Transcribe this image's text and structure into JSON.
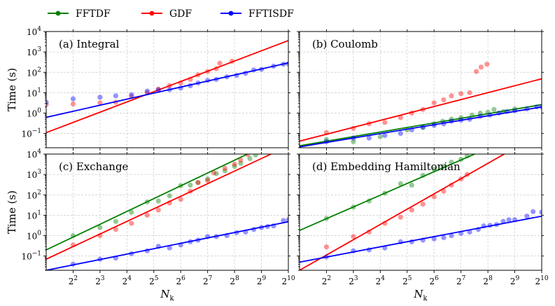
{
  "chart_data": {
    "type": "scatter",
    "xlabel": "N",
    "xlabel_sub": "k",
    "ylabel": "Time (s)",
    "x_scale": "log2",
    "y_scale": "log10",
    "xlim": [
      2,
      1024
    ],
    "ylim": [
      0.02,
      10000
    ],
    "x_ticks": [
      {
        "value": 4,
        "base": "2",
        "exp": "2"
      },
      {
        "value": 8,
        "base": "2",
        "exp": "3"
      },
      {
        "value": 16,
        "base": "2",
        "exp": "4"
      },
      {
        "value": 32,
        "base": "2",
        "exp": "5"
      },
      {
        "value": 64,
        "base": "2",
        "exp": "6"
      },
      {
        "value": 128,
        "base": "2",
        "exp": "7"
      },
      {
        "value": 256,
        "base": "2",
        "exp": "8"
      },
      {
        "value": 512,
        "base": "2",
        "exp": "9"
      },
      {
        "value": 1024,
        "base": "2",
        "exp": "10"
      }
    ],
    "y_ticks": [
      {
        "value": 0.1,
        "base": "10",
        "exp": "−1"
      },
      {
        "value": 1,
        "base": "10",
        "exp": "0"
      },
      {
        "value": 10,
        "base": "10",
        "exp": "1"
      },
      {
        "value": 100,
        "base": "10",
        "exp": "2"
      },
      {
        "value": 1000,
        "base": "10",
        "exp": "3"
      },
      {
        "value": 10000,
        "base": "10",
        "exp": "4"
      }
    ],
    "legend": [
      {
        "name": "FFTDF",
        "color": "#008000"
      },
      {
        "name": "GDF",
        "color": "#ff0000"
      },
      {
        "name": "FFTISDF",
        "color": "#0000ff"
      }
    ],
    "panels": [
      {
        "title": "(a) Integral",
        "series": [
          {
            "name": "GDF",
            "color": "#ff0000",
            "points": [
              [
                2,
                2.6
              ],
              [
                4,
                2.8
              ],
              [
                8,
                3.2
              ],
              [
                12,
                3.4
              ],
              [
                18,
                6.5
              ],
              [
                27,
                10
              ],
              [
                36,
                15
              ],
              [
                48,
                22
              ],
              [
                64,
                30
              ],
              [
                82,
                45
              ],
              [
                100,
                75
              ],
              [
                128,
                110
              ],
              [
                160,
                150
              ],
              [
                175,
                280
              ],
              [
                240,
                350
              ]
            ],
            "fit": [
              [
                2,
                0.11
              ],
              [
                1024,
                3600
              ]
            ]
          },
          {
            "name": "FFTISDF",
            "color": "#0000ff",
            "points": [
              [
                2,
                3.4
              ],
              [
                4,
                5
              ],
              [
                8,
                6
              ],
              [
                12,
                7
              ],
              [
                18,
                8
              ],
              [
                27,
                12
              ],
              [
                36,
                14
              ],
              [
                48,
                14
              ],
              [
                64,
                17
              ],
              [
                82,
                22
              ],
              [
                100,
                30
              ],
              [
                128,
                40
              ],
              [
                160,
                45
              ],
              [
                210,
                60
              ],
              [
                270,
                70
              ],
              [
                340,
                90
              ],
              [
                420,
                130
              ],
              [
                512,
                140
              ],
              [
                700,
                200
              ],
              [
                900,
                250
              ],
              [
                1024,
                260
              ]
            ],
            "fit": [
              [
                2,
                0.62
              ],
              [
                1024,
                290
              ]
            ]
          }
        ]
      },
      {
        "title": "(b) Coulomb",
        "series": [
          {
            "name": "FFTDF",
            "color": "#008000",
            "points": [
              [
                4,
                0.05
              ],
              [
                8,
                0.04
              ],
              [
                16,
                0.07
              ],
              [
                32,
                0.15
              ],
              [
                48,
                0.2
              ],
              [
                64,
                0.3
              ],
              [
                80,
                0.4
              ],
              [
                100,
                0.5
              ],
              [
                128,
                0.6
              ],
              [
                170,
                0.8
              ],
              [
                210,
                1.0
              ],
              [
                256,
                1.1
              ],
              [
                300,
                1.5
              ],
              [
                380,
                1.2
              ],
              [
                512,
                1.6
              ]
            ],
            "fit": [
              [
                2,
                0.025
              ],
              [
                1024,
                2.6
              ]
            ]
          },
          {
            "name": "GDF",
            "color": "#ff0000",
            "points": [
              [
                4,
                0.11
              ],
              [
                8,
                0.18
              ],
              [
                12,
                0.3
              ],
              [
                18,
                0.35
              ],
              [
                27,
                0.6
              ],
              [
                36,
                1.0
              ],
              [
                48,
                1.5
              ],
              [
                64,
                3.2
              ],
              [
                82,
                4.5
              ],
              [
                100,
                7
              ],
              [
                128,
                9
              ],
              [
                160,
                10
              ],
              [
                190,
                110
              ],
              [
                215,
                180
              ],
              [
                250,
                250
              ]
            ],
            "fit": [
              [
                2,
                0.042
              ],
              [
                1024,
                48
              ]
            ]
          },
          {
            "name": "FFTISDF",
            "color": "#0000ff",
            "points": [
              [
                4,
                0.04
              ],
              [
                8,
                0.06
              ],
              [
                12,
                0.06
              ],
              [
                18,
                0.08
              ],
              [
                27,
                0.1
              ],
              [
                36,
                0.15
              ],
              [
                48,
                0.2
              ],
              [
                64,
                0.25
              ],
              [
                82,
                0.3
              ],
              [
                100,
                0.4
              ],
              [
                128,
                0.45
              ],
              [
                160,
                0.5
              ],
              [
                210,
                0.7
              ],
              [
                270,
                0.8
              ],
              [
                340,
                1.0
              ],
              [
                420,
                1.2
              ],
              [
                512,
                1.3
              ],
              [
                700,
                1.6
              ],
              [
                900,
                2.0
              ],
              [
                1024,
                2.0
              ]
            ],
            "fit": [
              [
                2,
                0.022
              ],
              [
                1024,
                2.0
              ]
            ]
          }
        ]
      },
      {
        "title": "(c) Exchange",
        "series": [
          {
            "name": "FFTDF",
            "color": "#008000",
            "points": [
              [
                4,
                1.0
              ],
              [
                8,
                2.5
              ],
              [
                12,
                5
              ],
              [
                18,
                14
              ],
              [
                27,
                45
              ],
              [
                36,
                50
              ],
              [
                48,
                90
              ],
              [
                64,
                280
              ],
              [
                82,
                300
              ],
              [
                100,
                400
              ],
              [
                128,
                600
              ],
              [
                160,
                1100
              ],
              [
                200,
                1500
              ],
              [
                256,
                2500
              ],
              [
                300,
                3500
              ],
              [
                380,
                6000
              ],
              [
                440,
                9000
              ]
            ],
            "fit": [
              [
                2,
                0.2
              ],
              [
                1024,
                90000
              ]
            ]
          },
          {
            "name": "GDF",
            "color": "#ff0000",
            "points": [
              [
                4,
                0.35
              ],
              [
                8,
                1.0
              ],
              [
                12,
                2
              ],
              [
                18,
                4
              ],
              [
                27,
                10
              ],
              [
                36,
                18
              ],
              [
                48,
                40
              ],
              [
                64,
                60
              ],
              [
                82,
                150
              ],
              [
                100,
                400
              ],
              [
                128,
                500
              ],
              [
                150,
                1200
              ],
              [
                200,
                2000
              ],
              [
                256,
                3200
              ],
              [
                300,
                5000
              ],
              [
                360,
                9500
              ]
            ],
            "fit": [
              [
                2,
                0.07
              ],
              [
                1024,
                25000
              ]
            ]
          },
          {
            "name": "FFTISDF",
            "color": "#0000ff",
            "points": [
              [
                4,
                0.04
              ],
              [
                8,
                0.07
              ],
              [
                12,
                0.08
              ],
              [
                18,
                0.13
              ],
              [
                27,
                0.18
              ],
              [
                36,
                0.3
              ],
              [
                48,
                0.25
              ],
              [
                64,
                0.35
              ],
              [
                82,
                0.5
              ],
              [
                100,
                0.6
              ],
              [
                128,
                0.9
              ],
              [
                160,
                0.9
              ],
              [
                210,
                1.0
              ],
              [
                270,
                1.4
              ],
              [
                340,
                1.5
              ],
              [
                420,
                2.0
              ],
              [
                512,
                2.5
              ],
              [
                600,
                2.8
              ],
              [
                700,
                3.0
              ],
              [
                900,
                5.5
              ],
              [
                1024,
                6.0
              ]
            ],
            "fit": [
              [
                2,
                0.02
              ],
              [
                1024,
                4.8
              ]
            ]
          }
        ]
      },
      {
        "title": "(d) Embedding Hamiltonian",
        "series": [
          {
            "name": "FFTDF",
            "color": "#008000",
            "points": [
              [
                4,
                7
              ],
              [
                8,
                25
              ],
              [
                12,
                50
              ],
              [
                18,
                120
              ],
              [
                27,
                350
              ],
              [
                36,
                300
              ],
              [
                48,
                900
              ],
              [
                64,
                1800
              ],
              [
                82,
                2500
              ],
              [
                100,
                4000
              ],
              [
                128,
                5500
              ],
              [
                150,
                8000
              ]
            ],
            "fit": [
              [
                2,
                1.8
              ],
              [
                200,
                12000
              ]
            ]
          },
          {
            "name": "GDF",
            "color": "#ff0000",
            "points": [
              [
                4,
                0.28
              ],
              [
                8,
                0.9
              ],
              [
                12,
                1.5
              ],
              [
                18,
                4
              ],
              [
                27,
                8
              ],
              [
                36,
                18
              ],
              [
                48,
                35
              ],
              [
                64,
                80
              ],
              [
                82,
                150
              ],
              [
                100,
                300
              ],
              [
                128,
                600
              ],
              [
                150,
                1000
              ]
            ],
            "fit": [
              [
                2,
                0.02
              ],
              [
                420,
                12000
              ]
            ]
          },
          {
            "name": "FFTISDF",
            "color": "#0000ff",
            "points": [
              [
                4,
                0.09
              ],
              [
                8,
                0.18
              ],
              [
                12,
                0.2
              ],
              [
                18,
                0.25
              ],
              [
                27,
                0.5
              ],
              [
                36,
                0.5
              ],
              [
                48,
                0.6
              ],
              [
                64,
                0.7
              ],
              [
                82,
                0.8
              ],
              [
                100,
                1.0
              ],
              [
                128,
                1.3
              ],
              [
                160,
                1.5
              ],
              [
                200,
                2.0
              ],
              [
                230,
                3.0
              ],
              [
                270,
                3.2
              ],
              [
                320,
                3.5
              ],
              [
                380,
                5
              ],
              [
                440,
                6
              ],
              [
                512,
                6
              ],
              [
                700,
                9
              ],
              [
                820,
                15
              ],
              [
                1024,
                14
              ]
            ],
            "fit": [
              [
                2,
                0.05
              ],
              [
                1024,
                9
              ]
            ]
          }
        ]
      }
    ]
  }
}
